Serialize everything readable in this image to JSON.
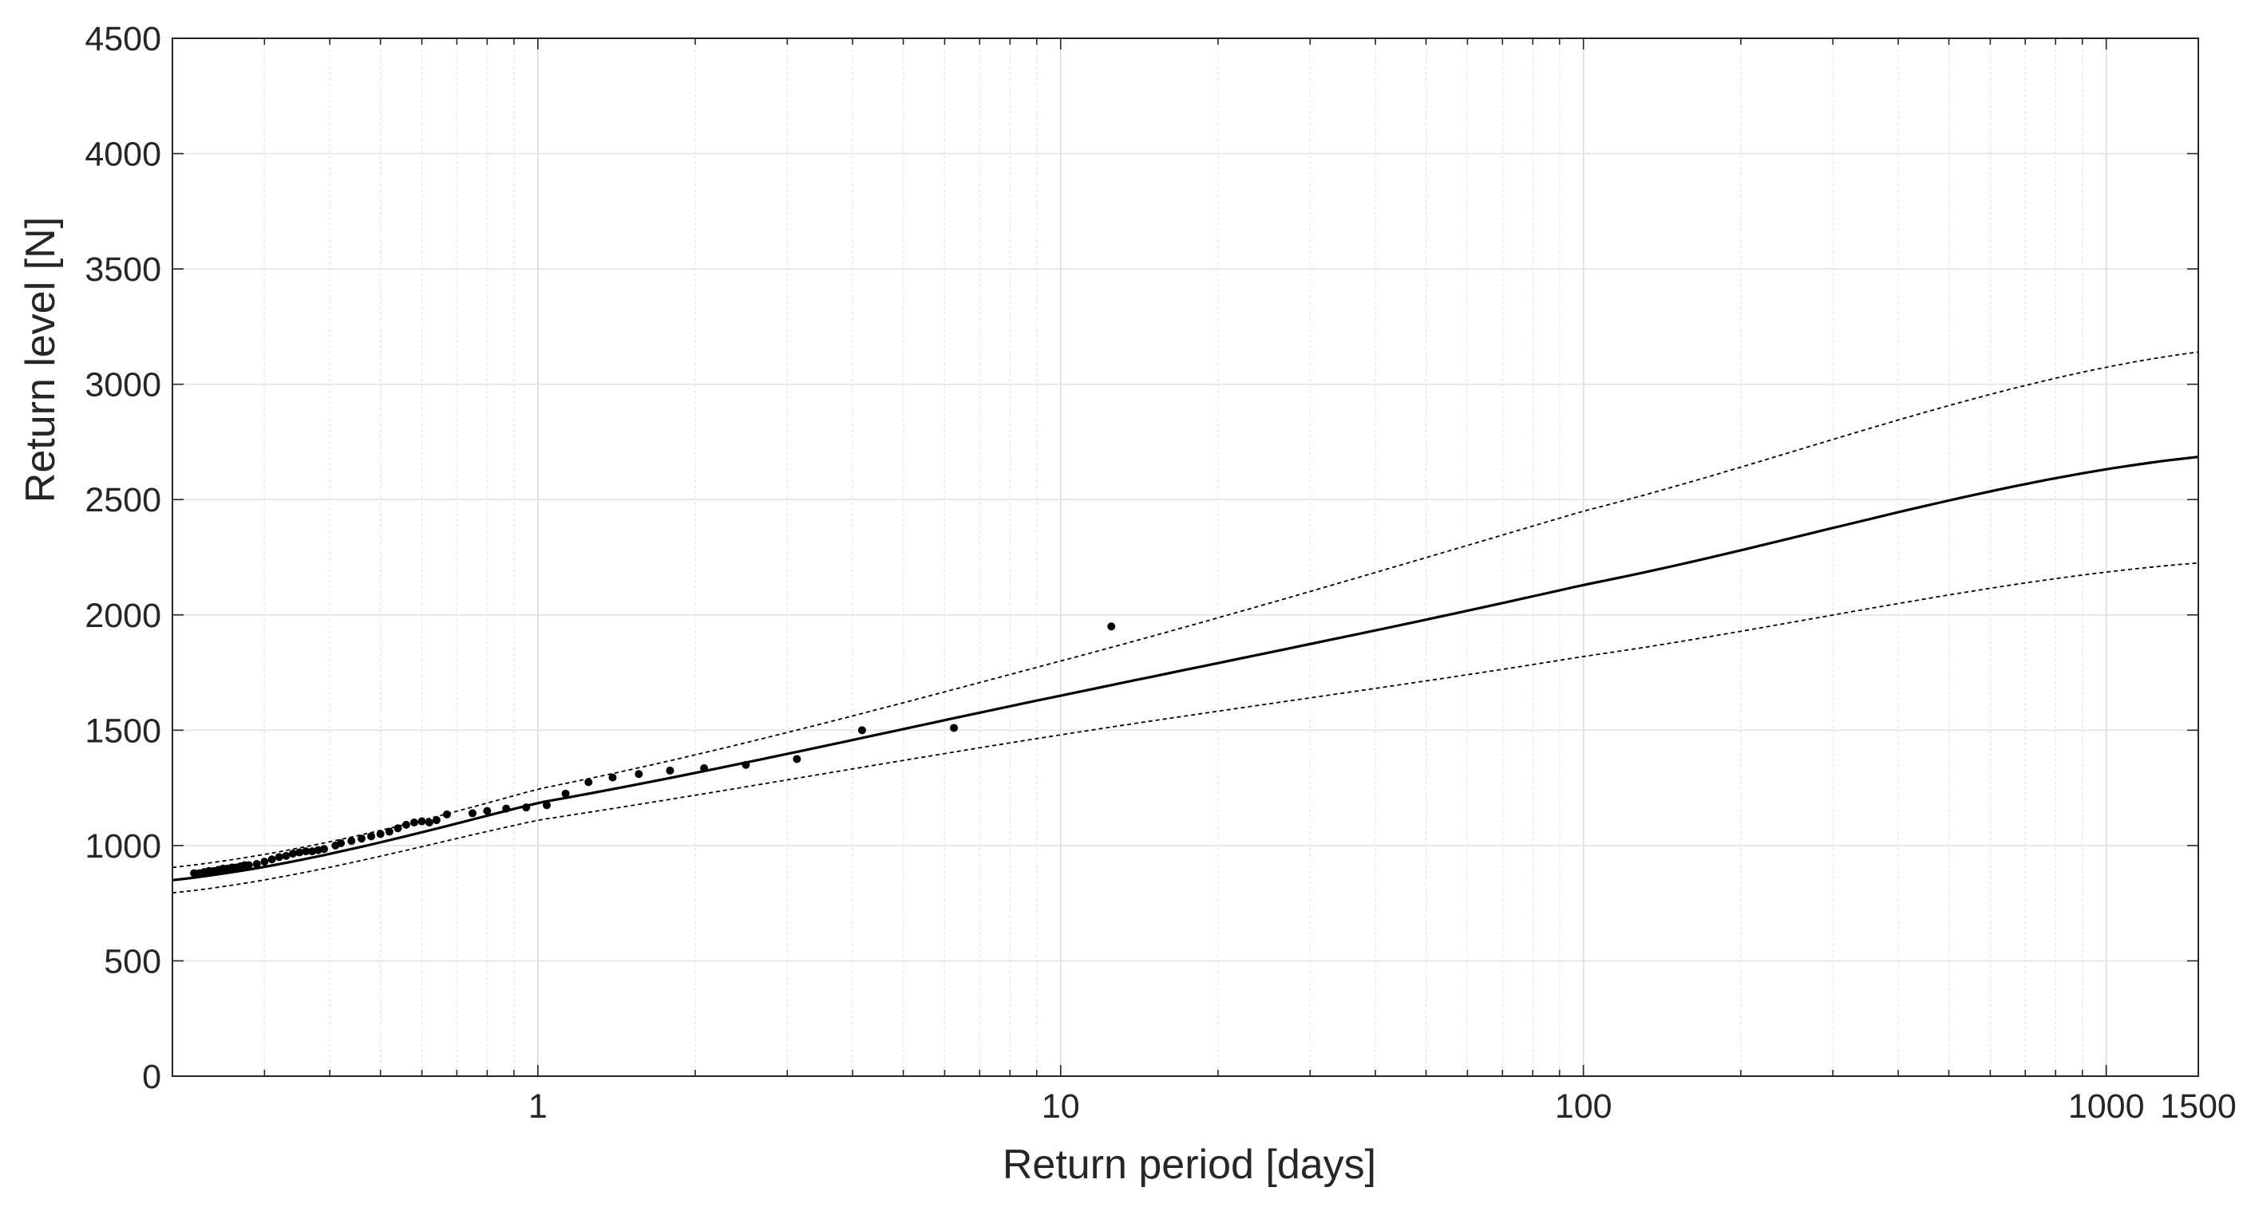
{
  "chart_data": {
    "type": "scatter",
    "title": "",
    "xlabel": "Return period [days]",
    "ylabel": "Return level [N]",
    "x_scale": "log",
    "xlim": [
      0.2,
      1500
    ],
    "ylim": [
      0,
      4500
    ],
    "x_ticks": [
      1,
      10,
      100,
      1000,
      1500
    ],
    "x_tick_labels": [
      "1",
      "10",
      "100",
      "1000",
      "1500"
    ],
    "y_ticks": [
      0,
      500,
      1000,
      1500,
      2000,
      2500,
      3000,
      3500,
      4000,
      4500
    ],
    "y_tick_labels": [
      "0",
      "500",
      "1000",
      "1500",
      "2000",
      "2500",
      "3000",
      "3500",
      "4000",
      "4500"
    ],
    "grid": true,
    "series": [
      {
        "style": "solid",
        "color": "#000000",
        "x": [
          0.2,
          1,
          10,
          100,
          1500
        ],
        "y": [
          850,
          1185,
          1650,
          2130,
          2685
        ]
      },
      {
        "style": "dashed",
        "color": "#000000",
        "x": [
          0.2,
          1,
          10,
          100,
          1500
        ],
        "y": [
          905,
          1245,
          1800,
          2450,
          3140
        ]
      },
      {
        "style": "dashed",
        "color": "#000000",
        "x": [
          0.2,
          1,
          10,
          100,
          1500
        ],
        "y": [
          795,
          1110,
          1480,
          1820,
          2225
        ]
      },
      {
        "style": "points",
        "color": "#000000",
        "x": [
          0.22,
          0.225,
          0.23,
          0.235,
          0.24,
          0.245,
          0.25,
          0.255,
          0.26,
          0.265,
          0.27,
          0.275,
          0.28,
          0.29,
          0.3,
          0.31,
          0.32,
          0.33,
          0.34,
          0.35,
          0.36,
          0.37,
          0.38,
          0.39,
          0.41,
          0.42,
          0.44,
          0.46,
          0.48,
          0.5,
          0.52,
          0.54,
          0.56,
          0.58,
          0.6,
          0.62,
          0.64,
          0.67,
          0.75,
          0.8,
          0.87,
          0.95,
          1.04,
          1.13,
          1.25,
          1.39,
          1.56,
          1.79,
          2.08,
          2.5,
          3.13,
          4.17,
          6.25,
          12.5
        ],
        "y": [
          880,
          880,
          885,
          890,
          890,
          895,
          900,
          900,
          905,
          905,
          910,
          915,
          915,
          920,
          930,
          940,
          950,
          955,
          965,
          970,
          975,
          975,
          980,
          985,
          1000,
          1010,
          1020,
          1030,
          1040,
          1050,
          1060,
          1075,
          1090,
          1100,
          1105,
          1100,
          1110,
          1135,
          1140,
          1150,
          1160,
          1165,
          1175,
          1225,
          1275,
          1295,
          1310,
          1325,
          1335,
          1350,
          1375,
          1500,
          1510,
          1950
        ]
      }
    ]
  }
}
